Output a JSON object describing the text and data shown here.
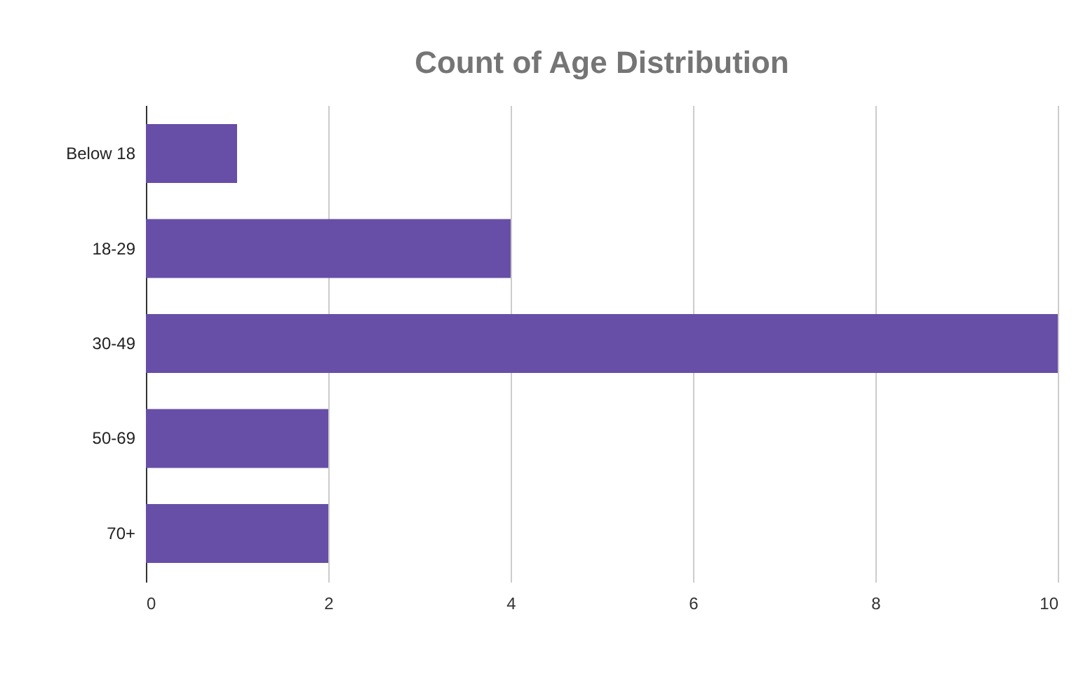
{
  "chart_data": {
    "type": "bar",
    "orientation": "horizontal",
    "title": "Count of Age Distribution",
    "categories": [
      "Below 18",
      "18-29",
      "30-49",
      "50-69",
      "70+"
    ],
    "values": [
      1,
      4,
      10,
      2,
      2
    ],
    "color": "#674ea7",
    "xlim": [
      0,
      10
    ],
    "xticks": [
      0,
      2,
      4,
      6,
      8,
      10
    ],
    "grid": "x"
  }
}
